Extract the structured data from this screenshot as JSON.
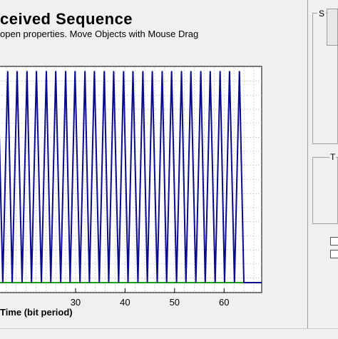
{
  "window": {
    "title": "ceived Sequence",
    "hint": "open properties.  Move Objects with Mouse Drag"
  },
  "side_panel": {
    "group_letter": "S",
    "group2_letter": "T"
  },
  "colors": {
    "signal": "#0a0a8c",
    "baseline": "#1ea01e",
    "grid": "#b8b8b8",
    "plot_bg": "#ffffff"
  },
  "chart_data": {
    "type": "line",
    "xlabel": "Time (bit period)",
    "ylabel": "",
    "title": "",
    "x_ticks": [
      30,
      40,
      50,
      60
    ],
    "xlim": [
      13.3,
      67.6
    ],
    "ylim": [
      0,
      1
    ],
    "grid": true,
    "peaks_x": [
      14.3,
      16.3,
      18.2,
      20.2,
      22.1,
      24.1,
      26.0,
      28.0,
      29.9,
      31.9,
      33.8,
      35.8,
      37.7,
      39.7,
      41.6,
      43.6,
      45.5,
      47.5,
      49.4,
      51.4,
      53.3,
      55.3,
      57.2,
      59.2,
      61.1,
      63.1
    ],
    "peak_value": 1,
    "trough_value": 0,
    "tail_x_end": 67.6,
    "series": [
      {
        "values_note": "",
        "name": ""
      }
    ]
  }
}
